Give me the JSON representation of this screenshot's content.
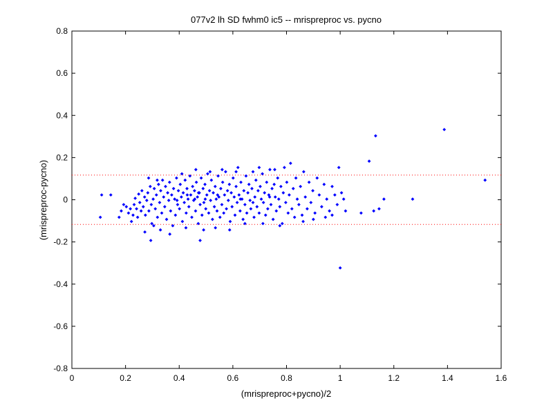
{
  "chart_data": {
    "type": "scatter",
    "title": "077v2 lh SD fwhm0 ic5 -- mrispreproc vs. pycno",
    "xlabel": "(mrispreproc+pycno)/2",
    "ylabel": "(mrispreproc-pycno)",
    "xlim": [
      0,
      1.6
    ],
    "ylim": [
      -0.8,
      0.8
    ],
    "x_ticks": [
      "0",
      "0.2",
      "0.4",
      "0.6",
      "0.8",
      "1",
      "1.2",
      "1.4",
      "1.6"
    ],
    "y_ticks": [
      "0.8",
      "0.6",
      "0.4",
      "0.2",
      "0",
      "-0.2",
      "-0.4",
      "-0.6",
      "-0.8"
    ],
    "grid": false,
    "marker_color": "#0000ff",
    "reference_lines": {
      "color": "#ff0000",
      "style": "dotted",
      "values": [
        0.117,
        -0.117
      ]
    },
    "series": [
      {
        "points": [
          [
            0.106,
            -0.083
          ],
          [
            0.111,
            0.023
          ],
          [
            0.145,
            0.023
          ],
          [
            0.176,
            -0.083
          ],
          [
            0.184,
            -0.053
          ],
          [
            0.193,
            -0.023
          ],
          [
            0.203,
            -0.033
          ],
          [
            0.211,
            -0.063
          ],
          [
            0.218,
            -0.043
          ],
          [
            0.222,
            -0.103
          ],
          [
            0.228,
            -0.073
          ],
          [
            0.232,
            -0.023
          ],
          [
            0.236,
            0.007
          ],
          [
            0.241,
            -0.043
          ],
          [
            0.245,
            -0.083
          ],
          [
            0.249,
            0.027
          ],
          [
            0.253,
            -0.013
          ],
          [
            0.258,
            -0.053
          ],
          [
            0.261,
            0.043
          ],
          [
            0.266,
            -0.033
          ],
          [
            0.271,
            0.013
          ],
          [
            0.274,
            -0.073
          ],
          [
            0.279,
            -0.003
          ],
          [
            0.283,
            0.033
          ],
          [
            0.287,
            -0.053
          ],
          [
            0.292,
            0.063
          ],
          [
            0.296,
            -0.023
          ],
          [
            0.298,
            -0.113
          ],
          [
            0.303,
            0.003
          ],
          [
            0.307,
            0.053
          ],
          [
            0.311,
            -0.043
          ],
          [
            0.315,
            0.023
          ],
          [
            0.319,
            -0.083
          ],
          [
            0.323,
            0.073
          ],
          [
            0.327,
            -0.013
          ],
          [
            0.331,
            0.043
          ],
          [
            0.335,
            -0.063
          ],
          [
            0.338,
            0.093
          ],
          [
            0.342,
            0.013
          ],
          [
            0.346,
            -0.033
          ],
          [
            0.349,
            0.063
          ],
          [
            0.353,
            -0.093
          ],
          [
            0.357,
            0.033
          ],
          [
            0.361,
            -0.003
          ],
          [
            0.364,
            0.083
          ],
          [
            0.368,
            -0.053
          ],
          [
            0.372,
            0.023
          ],
          [
            0.376,
            -0.123
          ],
          [
            0.379,
            0.053
          ],
          [
            0.383,
            0.003
          ],
          [
            0.386,
            -0.073
          ],
          [
            0.39,
            0.103
          ],
          [
            0.394,
            -0.023
          ],
          [
            0.397,
            0.043
          ],
          [
            0.401,
            -0.043
          ],
          [
            0.404,
            0.073
          ],
          [
            0.408,
            0.013
          ],
          [
            0.412,
            -0.103
          ],
          [
            0.415,
            0.033
          ],
          [
            0.419,
            -0.013
          ],
          [
            0.422,
            0.093
          ],
          [
            0.426,
            -0.063
          ],
          [
            0.429,
            0.053
          ],
          [
            0.433,
            0.003
          ],
          [
            0.436,
            -0.033
          ],
          [
            0.44,
            0.113
          ],
          [
            0.443,
            0.023
          ],
          [
            0.447,
            -0.083
          ],
          [
            0.45,
            0.063
          ],
          [
            0.454,
            -0.003
          ],
          [
            0.457,
            0.043
          ],
          [
            0.461,
            -0.053
          ],
          [
            0.464,
            0.083
          ],
          [
            0.468,
            0.013
          ],
          [
            0.471,
            -0.113
          ],
          [
            0.475,
            0.033
          ],
          [
            0.478,
            -0.023
          ],
          [
            0.482,
            0.103
          ],
          [
            0.485,
            -0.073
          ],
          [
            0.489,
            0.053
          ],
          [
            0.492,
            -0.013
          ],
          [
            0.496,
            0.073
          ],
          [
            0.499,
            -0.043
          ],
          [
            0.503,
            0.023
          ],
          [
            0.506,
            0.123
          ],
          [
            0.51,
            -0.063
          ],
          [
            0.513,
            0.043
          ],
          [
            0.517,
            -0.003
          ],
          [
            0.52,
            0.093
          ],
          [
            0.524,
            -0.093
          ],
          [
            0.527,
            0.033
          ],
          [
            0.531,
            -0.033
          ],
          [
            0.534,
            0.063
          ],
          [
            0.538,
            0.003
          ],
          [
            0.541,
            -0.053
          ],
          [
            0.545,
            0.113
          ],
          [
            0.548,
            0.013
          ],
          [
            0.552,
            -0.083
          ],
          [
            0.555,
            0.053
          ],
          [
            0.559,
            -0.023
          ],
          [
            0.562,
            0.083
          ],
          [
            0.566,
            -0.063
          ],
          [
            0.569,
            0.023
          ],
          [
            0.573,
            0.133
          ],
          [
            0.576,
            -0.043
          ],
          [
            0.58,
            0.043
          ],
          [
            0.583,
            -0.003
          ],
          [
            0.587,
            0.073
          ],
          [
            0.59,
            -0.103
          ],
          [
            0.594,
            0.033
          ],
          [
            0.597,
            -0.033
          ],
          [
            0.601,
            0.103
          ],
          [
            0.605,
            0.013
          ],
          [
            0.608,
            -0.073
          ],
          [
            0.612,
            0.063
          ],
          [
            0.616,
            -0.013
          ],
          [
            0.619,
            0.153
          ],
          [
            0.623,
            0.023
          ],
          [
            0.627,
            -0.053
          ],
          [
            0.63,
            0.083
          ],
          [
            0.634,
            0.003
          ],
          [
            0.638,
            -0.093
          ],
          [
            0.641,
            0.043
          ],
          [
            0.645,
            -0.023
          ],
          [
            0.649,
            0.113
          ],
          [
            0.652,
            -0.063
          ],
          [
            0.656,
            0.033
          ],
          [
            0.66,
            0.073
          ],
          [
            0.664,
            -0.003
          ],
          [
            0.667,
            -0.043
          ],
          [
            0.671,
            0.053
          ],
          [
            0.675,
            0.133
          ],
          [
            0.679,
            -0.083
          ],
          [
            0.682,
            0.013
          ],
          [
            0.686,
            0.093
          ],
          [
            0.69,
            -0.033
          ],
          [
            0.694,
            0.043
          ],
          [
            0.698,
            -0.063
          ],
          [
            0.702,
            0.063
          ],
          [
            0.706,
            0.003
          ],
          [
            0.71,
            0.123
          ],
          [
            0.714,
            -0.013
          ],
          [
            0.718,
            0.033
          ],
          [
            0.722,
            -0.073
          ],
          [
            0.726,
            0.083
          ],
          [
            0.73,
            -0.043
          ],
          [
            0.734,
            0.023
          ],
          [
            0.738,
            0.143
          ],
          [
            0.742,
            -0.023
          ],
          [
            0.746,
            0.053
          ],
          [
            0.75,
            -0.093
          ],
          [
            0.754,
            0.073
          ],
          [
            0.758,
            0.013
          ],
          [
            0.762,
            -0.053
          ],
          [
            0.767,
            0.103
          ],
          [
            0.771,
            0.003
          ],
          [
            0.775,
            -0.033
          ],
          [
            0.779,
            0.063
          ],
          [
            0.784,
            -0.113
          ],
          [
            0.788,
            0.033
          ],
          [
            0.792,
            0.153
          ],
          [
            0.797,
            -0.013
          ],
          [
            0.801,
            0.083
          ],
          [
            0.806,
            -0.063
          ],
          [
            0.81,
            0.023
          ],
          [
            0.815,
            0.173
          ],
          [
            0.82,
            -0.043
          ],
          [
            0.825,
            0.053
          ],
          [
            0.83,
            -0.083
          ],
          [
            0.835,
            0.103
          ],
          [
            0.84,
            0.003
          ],
          [
            0.846,
            -0.023
          ],
          [
            0.852,
            0.063
          ],
          [
            0.858,
            -0.073
          ],
          [
            0.864,
            0.133
          ],
          [
            0.87,
            0.013
          ],
          [
            0.877,
            -0.043
          ],
          [
            0.884,
            0.083
          ],
          [
            0.891,
            -0.013
          ],
          [
            0.898,
            0.043
          ],
          [
            0.906,
            -0.063
          ],
          [
            0.914,
            0.103
          ],
          [
            0.922,
            0.023
          ],
          [
            0.931,
            -0.033
          ],
          [
            0.94,
            0.073
          ],
          [
            0.95,
            0.003
          ],
          [
            0.96,
            -0.053
          ],
          [
            0.97,
            0.063
          ],
          [
            0.98,
            0.023
          ],
          [
            0.989,
            -0.023
          ],
          [
            0.995,
            0.153
          ],
          [
            1.0,
            -0.323
          ],
          [
            1.005,
            0.033
          ],
          [
            1.013,
            0.003
          ],
          [
            1.02,
            -0.053
          ],
          [
            1.078,
            -0.063
          ],
          [
            1.108,
            0.183
          ],
          [
            1.125,
            -0.053
          ],
          [
            1.132,
            0.303
          ],
          [
            1.145,
            -0.043
          ],
          [
            1.163,
            0.003
          ],
          [
            1.27,
            0.003
          ],
          [
            1.388,
            0.333
          ],
          [
            1.54,
            0.093
          ],
          [
            0.272,
            -0.153
          ],
          [
            0.305,
            -0.123
          ],
          [
            0.286,
            0.103
          ],
          [
            0.33,
            -0.143
          ],
          [
            0.365,
            -0.163
          ],
          [
            0.318,
            0.093
          ],
          [
            0.41,
            0.123
          ],
          [
            0.425,
            -0.133
          ],
          [
            0.462,
            0.143
          ],
          [
            0.478,
            -0.193
          ],
          [
            0.491,
            -0.143
          ],
          [
            0.515,
            0.133
          ],
          [
            0.535,
            -0.133
          ],
          [
            0.56,
            0.143
          ],
          [
            0.588,
            -0.143
          ],
          [
            0.612,
            0.133
          ],
          [
            0.645,
            -0.113
          ],
          [
            0.698,
            0.153
          ],
          [
            0.712,
            -0.113
          ],
          [
            0.756,
            0.143
          ],
          [
            0.775,
            -0.123
          ],
          [
            0.862,
            -0.103
          ],
          [
            0.9,
            -0.093
          ],
          [
            0.945,
            -0.083
          ],
          [
            0.97,
            -0.073
          ],
          [
            0.294,
            -0.193
          ],
          [
            0.458,
            0.003
          ],
          [
            0.472,
            0.033
          ],
          [
            0.497,
            0.003
          ],
          [
            0.543,
            0.023
          ],
          [
            0.392,
            -0.003
          ],
          [
            0.43,
            0.023
          ],
          [
            0.628,
            0.003
          ],
          [
            0.675,
            -0.013
          ],
          [
            0.737,
            0.013
          ]
        ]
      }
    ]
  }
}
